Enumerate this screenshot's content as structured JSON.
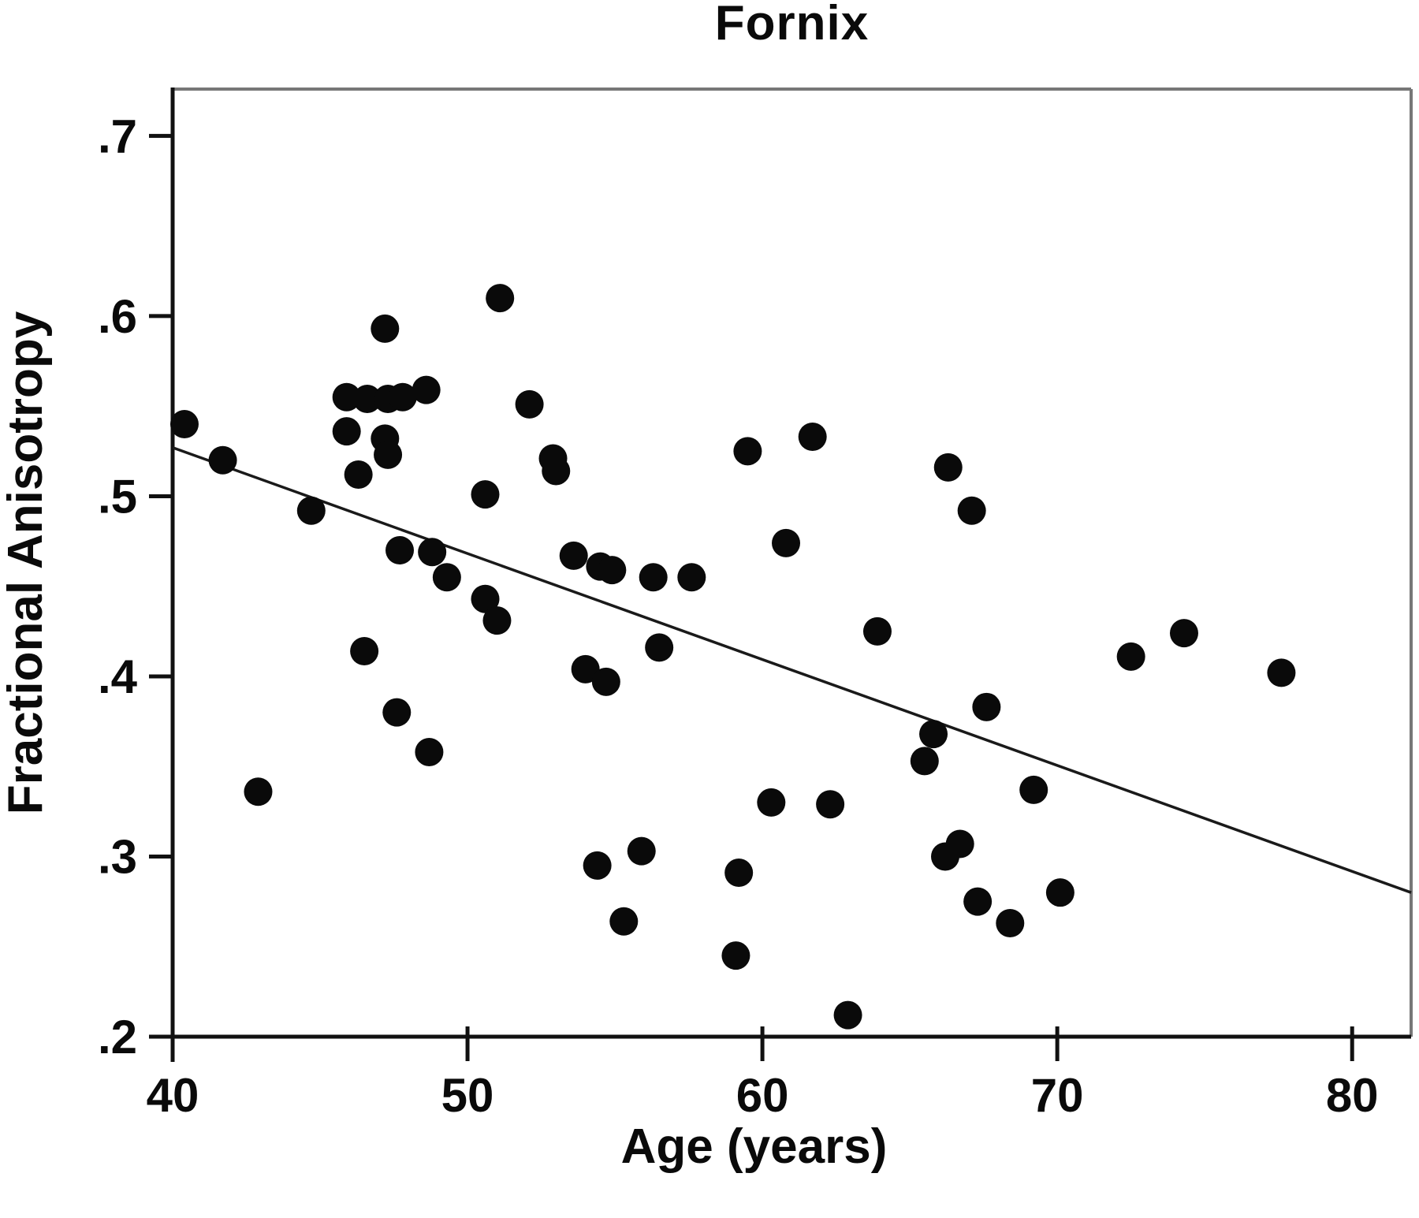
{
  "chart_data": {
    "type": "scatter",
    "title": "Fornix",
    "xlabel": "Age (years)",
    "ylabel": "Fractional Anisotropy",
    "xlim": [
      40,
      82
    ],
    "ylim": [
      0.2,
      0.726
    ],
    "x_ticks": [
      40,
      50,
      60,
      70,
      80
    ],
    "x_tick_labels": [
      "40",
      "50",
      "60",
      "70",
      "80"
    ],
    "y_ticks": [
      0.7,
      0.6,
      0.5,
      0.4,
      0.3,
      0.2
    ],
    "y_tick_labels": [
      ".7",
      ".6",
      ".5",
      ".4",
      ".3",
      ".2"
    ],
    "grid": false,
    "legend": "none",
    "marker": {
      "shape": "circle",
      "color": "#0a0a0a",
      "radius_px": 18
    },
    "regression_line": {
      "x1": 40,
      "y1": 0.527,
      "x2": 82,
      "y2": 0.28,
      "color": "#1a1a1a"
    },
    "points": [
      [
        40.4,
        0.54
      ],
      [
        41.7,
        0.52
      ],
      [
        42.9,
        0.336
      ],
      [
        44.7,
        0.492
      ],
      [
        45.9,
        0.555
      ],
      [
        46.6,
        0.554
      ],
      [
        47.3,
        0.554
      ],
      [
        47.8,
        0.555
      ],
      [
        48.6,
        0.559
      ],
      [
        45.9,
        0.536
      ],
      [
        46.3,
        0.512
      ],
      [
        47.2,
        0.532
      ],
      [
        47.3,
        0.523
      ],
      [
        47.2,
        0.593
      ],
      [
        51.1,
        0.61
      ],
      [
        52.1,
        0.551
      ],
      [
        50.6,
        0.501
      ],
      [
        52.9,
        0.521
      ],
      [
        53.0,
        0.514
      ],
      [
        50.6,
        0.443
      ],
      [
        51.0,
        0.431
      ],
      [
        46.5,
        0.414
      ],
      [
        47.6,
        0.38
      ],
      [
        48.7,
        0.358
      ],
      [
        47.7,
        0.47
      ],
      [
        48.8,
        0.469
      ],
      [
        49.3,
        0.455
      ],
      [
        53.6,
        0.467
      ],
      [
        54.5,
        0.461
      ],
      [
        54.9,
        0.459
      ],
      [
        56.3,
        0.455
      ],
      [
        57.6,
        0.455
      ],
      [
        56.5,
        0.416
      ],
      [
        54.0,
        0.404
      ],
      [
        54.7,
        0.397
      ],
      [
        59.5,
        0.525
      ],
      [
        61.7,
        0.533
      ],
      [
        60.8,
        0.474
      ],
      [
        63.9,
        0.425
      ],
      [
        66.3,
        0.516
      ],
      [
        67.1,
        0.492
      ],
      [
        67.6,
        0.383
      ],
      [
        65.8,
        0.368
      ],
      [
        65.5,
        0.353
      ],
      [
        69.2,
        0.337
      ],
      [
        62.3,
        0.329
      ],
      [
        60.3,
        0.33
      ],
      [
        66.7,
        0.307
      ],
      [
        66.2,
        0.3
      ],
      [
        67.3,
        0.275
      ],
      [
        68.4,
        0.263
      ],
      [
        70.1,
        0.28
      ],
      [
        62.9,
        0.212
      ],
      [
        55.9,
        0.303
      ],
      [
        54.4,
        0.295
      ],
      [
        59.2,
        0.291
      ],
      [
        55.3,
        0.264
      ],
      [
        59.1,
        0.245
      ],
      [
        72.5,
        0.411
      ],
      [
        74.3,
        0.424
      ],
      [
        77.6,
        0.402
      ]
    ]
  },
  "colors": {
    "background": "#ffffff",
    "axis_main": "#111111",
    "frame_secondary": "#777777",
    "marker": "#0a0a0a",
    "text": "#0a0a0a"
  }
}
